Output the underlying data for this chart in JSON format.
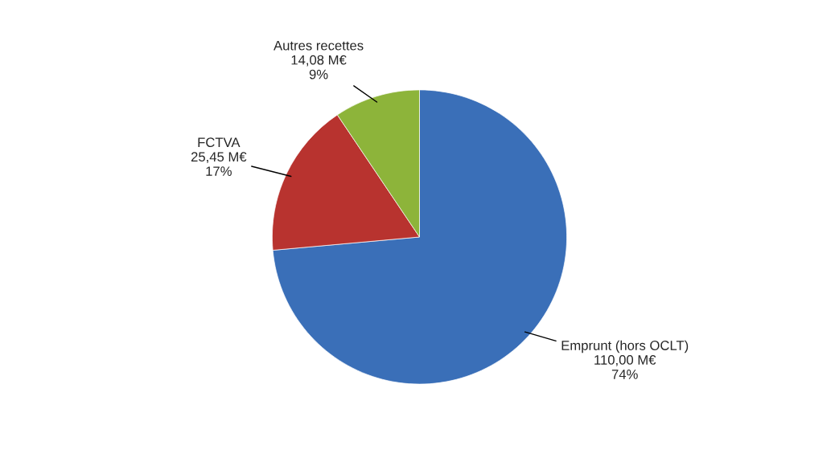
{
  "chart_data": {
    "type": "pie",
    "categories": [
      "Emprunt (hors OCLT)",
      "FCTVA",
      "Autres recettes"
    ],
    "values": [
      110.0,
      25.45,
      14.08
    ],
    "colors": [
      "#3a6fb8",
      "#b8332f",
      "#8db43a"
    ],
    "value_labels": [
      "110,00 M€\n74%",
      "25,45 M€\n17%",
      "14,08 M€\n9%"
    ],
    "legend": false
  }
}
